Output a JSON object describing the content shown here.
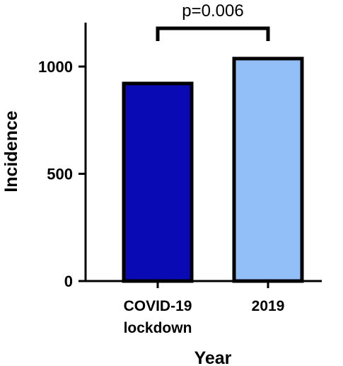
{
  "chart_data": {
    "type": "bar",
    "categories": [
      [
        "COVID-19",
        "lockdown"
      ],
      [
        "2019"
      ]
    ],
    "values": [
      921,
      1037
    ],
    "colors": [
      "#0a0ab4",
      "#92bff7"
    ],
    "bar_outline_color": "#000000",
    "xlabel": "Year",
    "ylabel": "Incidence",
    "ylim": [
      0,
      1200
    ],
    "yticks": [
      0,
      500,
      1000
    ],
    "grid": false,
    "annotation": {
      "text": "p=0.006",
      "type": "significance-bracket",
      "between": [
        0,
        1
      ]
    }
  }
}
